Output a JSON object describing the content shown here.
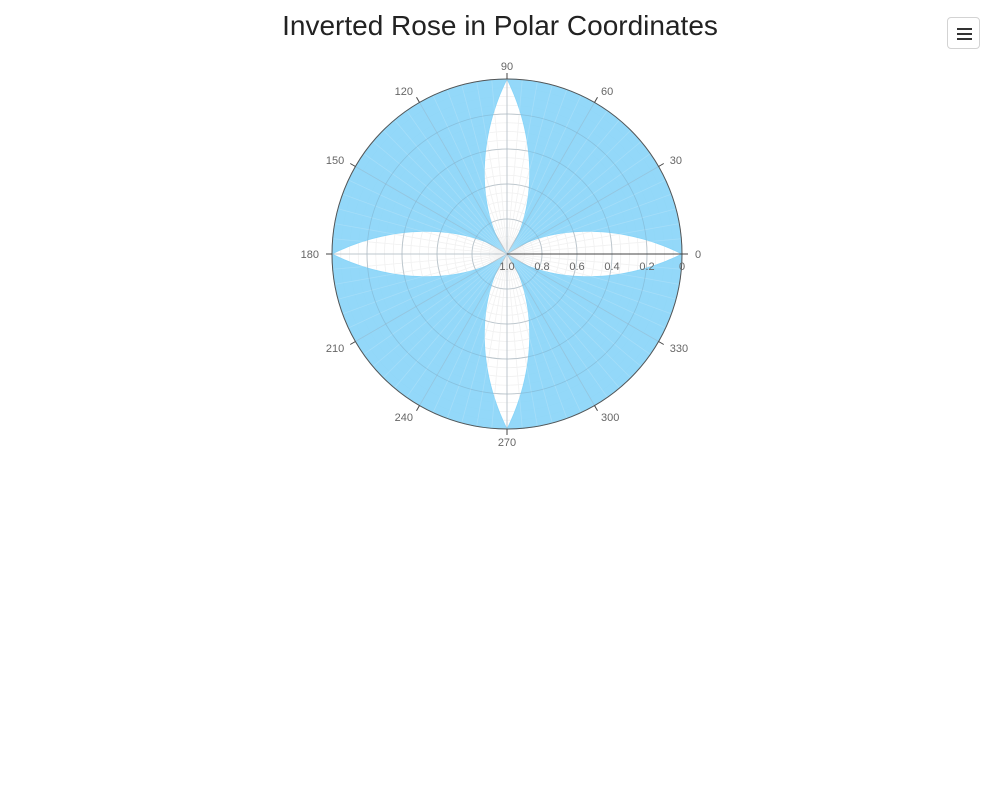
{
  "header": {
    "title": "Inverted Rose in Polar Coordinates"
  },
  "toolbar": {
    "menu_icon": "hamburger-menu-icon"
  },
  "chart_data": {
    "type": "polar-area",
    "title": "Inverted Rose in Polar Coordinates",
    "radial_axis": {
      "reversed": true,
      "range": [
        0,
        1
      ],
      "tick_labels": [
        "0",
        "0.2",
        "0.4",
        "0.6",
        "0.8",
        "1.0"
      ],
      "tick_values": [
        0,
        0.2,
        0.4,
        0.6,
        0.8,
        1.0
      ]
    },
    "angular_axis": {
      "unit": "degrees",
      "tick_values": [
        0,
        30,
        60,
        90,
        120,
        150,
        180,
        210,
        240,
        270,
        300,
        330
      ],
      "tick_labels": [
        "0",
        "30",
        "60",
        "90",
        "120",
        "150",
        "180",
        "210",
        "240",
        "270",
        "300",
        "330"
      ]
    },
    "series": [
      {
        "function": "r = |sin(2θ)|",
        "fill": "#87d4f8",
        "stroke": "#87d4f8"
      }
    ],
    "grid": true,
    "colors": {
      "fill": "#87d4f8",
      "grid": "#e6e6e6",
      "axis": "#666666",
      "text": "#666666"
    }
  }
}
